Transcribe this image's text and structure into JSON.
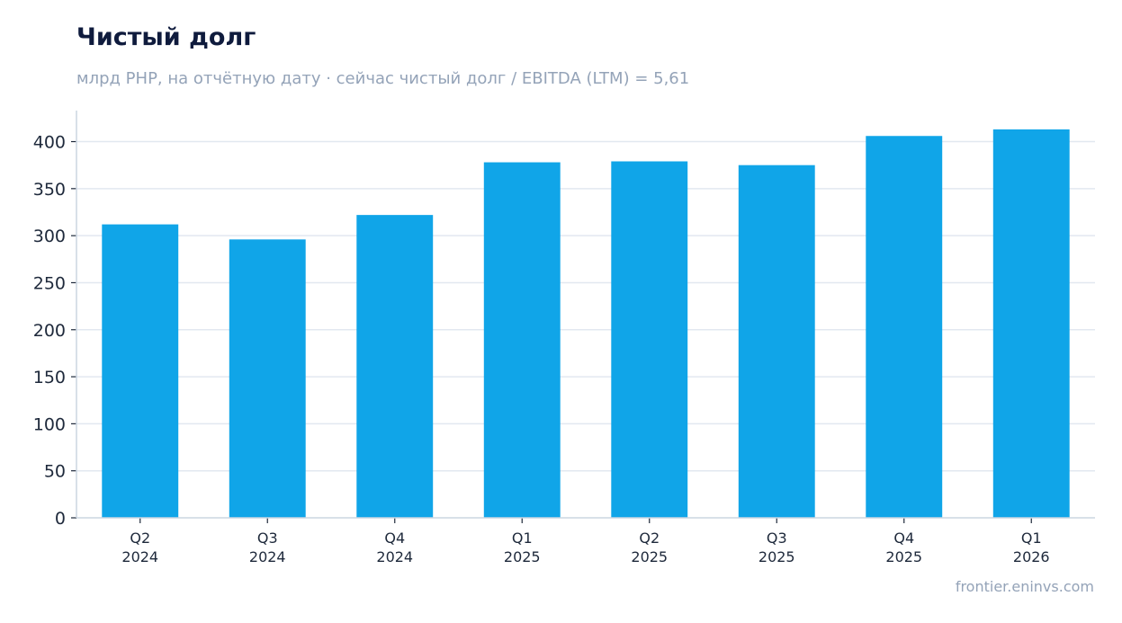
{
  "header": {
    "title": "Чистый долг",
    "subtitle": "млрд PHP, на отчётную дату · сейчас чистый долг / EBITDA (LTM) = 5,61"
  },
  "footer": {
    "source": "frontier.eninvs.com"
  },
  "colors": {
    "bar": "#10a5e8",
    "grid": "#e2e8f0",
    "axis": "#cbd5e1"
  },
  "chart_data": {
    "type": "bar",
    "title": "Чистый долг",
    "subtitle": "млрд PHP, на отчётную дату · сейчас чистый долг / EBITDA (LTM) = 5,61",
    "categories": [
      [
        "Q2",
        "2024"
      ],
      [
        "Q3",
        "2024"
      ],
      [
        "Q4",
        "2024"
      ],
      [
        "Q1",
        "2025"
      ],
      [
        "Q2",
        "2025"
      ],
      [
        "Q3",
        "2025"
      ],
      [
        "Q4",
        "2025"
      ],
      [
        "Q1",
        "2026"
      ]
    ],
    "values": [
      312,
      296,
      322,
      378,
      379,
      375,
      406,
      413
    ],
    "ylim": [
      0,
      433
    ],
    "yticks": [
      0,
      50,
      100,
      150,
      200,
      250,
      300,
      350,
      400
    ],
    "grid": true,
    "legend": "none"
  }
}
